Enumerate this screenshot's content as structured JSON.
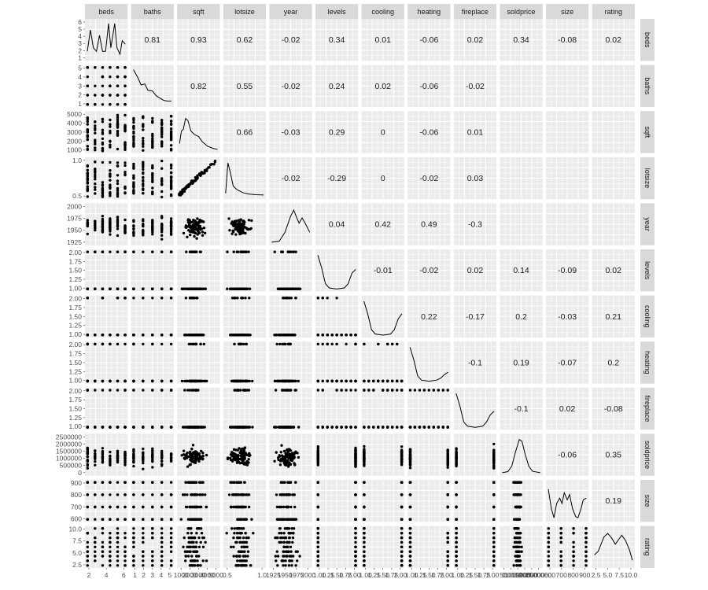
{
  "chart_data": {
    "type": "scatter-matrix",
    "variables": [
      "beds",
      "baths",
      "sqft",
      "lotsize",
      "year",
      "levels",
      "cooling",
      "heating",
      "fireplace",
      "soldprice",
      "size",
      "rating"
    ],
    "upper_panel": "correlation",
    "diagonal_panel": "density",
    "lower_panel": "scatter",
    "correlations": [
      {
        "row": "beds",
        "col": "baths",
        "value": "0.81"
      },
      {
        "row": "beds",
        "col": "sqft",
        "value": "0.93"
      },
      {
        "row": "beds",
        "col": "lotsize",
        "value": "0.62"
      },
      {
        "row": "beds",
        "col": "year",
        "value": "-0.02"
      },
      {
        "row": "beds",
        "col": "levels",
        "value": "0.34"
      },
      {
        "row": "beds",
        "col": "cooling",
        "value": "0.01"
      },
      {
        "row": "beds",
        "col": "heating",
        "value": "-0.06"
      },
      {
        "row": "beds",
        "col": "fireplace",
        "value": "0.02"
      },
      {
        "row": "beds",
        "col": "soldprice",
        "value": "0.34"
      },
      {
        "row": "beds",
        "col": "size",
        "value": "-0.08"
      },
      {
        "row": "beds",
        "col": "rating",
        "value": "0.02"
      },
      {
        "row": "baths",
        "col": "sqft",
        "value": "0.82"
      },
      {
        "row": "baths",
        "col": "lotsize",
        "value": "0.55"
      },
      {
        "row": "baths",
        "col": "year",
        "value": "-0.02"
      },
      {
        "row": "baths",
        "col": "levels",
        "value": "0.24"
      },
      {
        "row": "baths",
        "col": "cooling",
        "value": "0.02"
      },
      {
        "row": "baths",
        "col": "heating",
        "value": "-0.06"
      },
      {
        "row": "baths",
        "col": "fireplace",
        "value": "-0.02"
      },
      {
        "row": "sqft",
        "col": "lotsize",
        "value": "0.66"
      },
      {
        "row": "sqft",
        "col": "year",
        "value": "-0.03"
      },
      {
        "row": "sqft",
        "col": "levels",
        "value": "0.29"
      },
      {
        "row": "sqft",
        "col": "cooling",
        "value": "0"
      },
      {
        "row": "sqft",
        "col": "heating",
        "value": "-0.06"
      },
      {
        "row": "sqft",
        "col": "fireplace",
        "value": "0.01"
      },
      {
        "row": "lotsize",
        "col": "year",
        "value": "-0.02"
      },
      {
        "row": "lotsize",
        "col": "levels",
        "value": "-0.29"
      },
      {
        "row": "lotsize",
        "col": "cooling",
        "value": "0"
      },
      {
        "row": "lotsize",
        "col": "heating",
        "value": "-0.02"
      },
      {
        "row": "lotsize",
        "col": "fireplace",
        "value": "0.03"
      },
      {
        "row": "year",
        "col": "levels",
        "value": "0.04"
      },
      {
        "row": "year",
        "col": "cooling",
        "value": "0.42"
      },
      {
        "row": "year",
        "col": "heating",
        "value": "0.49"
      },
      {
        "row": "year",
        "col": "fireplace",
        "value": "-0.3"
      },
      {
        "row": "levels",
        "col": "cooling",
        "value": "-0.01"
      },
      {
        "row": "levels",
        "col": "heating",
        "value": "-0.02"
      },
      {
        "row": "levels",
        "col": "fireplace",
        "value": "0.02"
      },
      {
        "row": "levels",
        "col": "soldprice",
        "value": "0.14"
      },
      {
        "row": "levels",
        "col": "size",
        "value": "-0.09"
      },
      {
        "row": "levels",
        "col": "rating",
        "value": "0.02"
      },
      {
        "row": "cooling",
        "col": "heating",
        "value": "0.22"
      },
      {
        "row": "cooling",
        "col": "fireplace",
        "value": "-0.17"
      },
      {
        "row": "cooling",
        "col": "soldprice",
        "value": "0.2"
      },
      {
        "row": "cooling",
        "col": "size",
        "value": "-0.03"
      },
      {
        "row": "cooling",
        "col": "rating",
        "value": "0.21"
      },
      {
        "row": "heating",
        "col": "fireplace",
        "value": "-0.1"
      },
      {
        "row": "heating",
        "col": "soldprice",
        "value": "0.19"
      },
      {
        "row": "heating",
        "col": "size",
        "value": "-0.07"
      },
      {
        "row": "heating",
        "col": "rating",
        "value": "0.2"
      },
      {
        "row": "fireplace",
        "col": "soldprice",
        "value": "-0.1"
      },
      {
        "row": "fireplace",
        "col": "size",
        "value": "0.02"
      },
      {
        "row": "fireplace",
        "col": "rating",
        "value": "-0.08"
      },
      {
        "row": "soldprice",
        "col": "size",
        "value": "-0.06"
      },
      {
        "row": "soldprice",
        "col": "rating",
        "value": "0.35"
      },
      {
        "row": "size",
        "col": "rating",
        "value": "0.19"
      }
    ],
    "y_tick_labels": [
      {
        "row": "beds",
        "labels": [
          "6",
          "5",
          "4",
          "3",
          "2",
          "1"
        ]
      },
      {
        "row": "baths",
        "labels": [
          "5",
          "4",
          "3",
          "2",
          "1"
        ]
      },
      {
        "row": "sqft",
        "labels": [
          "5000",
          "4000",
          "3000",
          "2000",
          "1000"
        ]
      },
      {
        "row": "lotsize",
        "labels": [
          "1.0",
          "0.5"
        ]
      },
      {
        "row": "year",
        "labels": [
          "2000",
          "1975",
          "1950",
          "1925"
        ]
      },
      {
        "row": "levels",
        "labels": [
          "2.00",
          "1.75",
          "1.50",
          "1.25",
          "1.00"
        ]
      },
      {
        "row": "cooling",
        "labels": [
          "2.00",
          "1.75",
          "1.50",
          "1.25",
          "1.00"
        ]
      },
      {
        "row": "heating",
        "labels": [
          "2.00",
          "1.75",
          "1.50",
          "1.25",
          "1.00"
        ]
      },
      {
        "row": "fireplace",
        "labels": [
          "2.00",
          "1.75",
          "1.50",
          "1.25",
          "1.00"
        ]
      },
      {
        "row": "soldprice",
        "labels": [
          "2500000",
          "2000000",
          "1500000",
          "1000000",
          "500000",
          "0"
        ]
      },
      {
        "row": "size",
        "labels": [
          "900",
          "800",
          "700",
          "600"
        ]
      },
      {
        "row": "rating",
        "labels": [
          "10.0",
          "7.5",
          "5.0",
          "2.5"
        ]
      }
    ],
    "x_tick_labels": [
      {
        "col": "beds",
        "labels": [
          "2",
          "4",
          "6"
        ]
      },
      {
        "col": "baths",
        "labels": [
          "1",
          "2",
          "3",
          "4",
          "5"
        ]
      },
      {
        "col": "sqft",
        "labels": [
          "1000",
          "2000",
          "3000",
          "4000",
          "5000"
        ]
      },
      {
        "col": "lotsize",
        "labels": [
          "0.5",
          "1.0"
        ]
      },
      {
        "col": "year",
        "labels": [
          "1925",
          "1950",
          "1975",
          "2000"
        ]
      },
      {
        "col": "levels",
        "labels": [
          "1.00",
          "1.25",
          "1.50",
          "1.75",
          "2.00"
        ]
      },
      {
        "col": "cooling",
        "labels": [
          "1.00",
          "1.25",
          "1.50",
          "1.75",
          "2.00"
        ]
      },
      {
        "col": "heating",
        "labels": [
          "1.00",
          "1.25",
          "1.50",
          "1.75",
          "2.00"
        ]
      },
      {
        "col": "fireplace",
        "labels": [
          "1.00",
          "1.25",
          "1.50",
          "1.75",
          "2.00"
        ]
      },
      {
        "col": "soldprice",
        "labels": [
          "0",
          "500000",
          "1000000",
          "1500000",
          "2000000",
          "2500000"
        ]
      },
      {
        "col": "size",
        "labels": [
          "600",
          "700",
          "800",
          "900"
        ]
      },
      {
        "col": "rating",
        "labels": [
          "2.5",
          "5.0",
          "7.5",
          "10.0"
        ]
      }
    ]
  }
}
